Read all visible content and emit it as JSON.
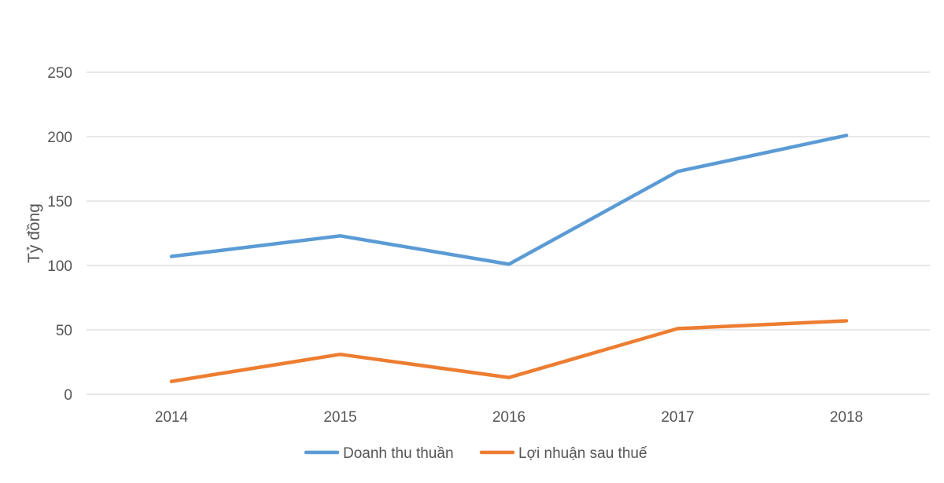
{
  "chart_data": {
    "type": "line",
    "title": "",
    "xlabel": "",
    "ylabel": "Tỷ đồng",
    "categories": [
      "2014",
      "2015",
      "2016",
      "2017",
      "2018"
    ],
    "ylim": [
      0,
      250
    ],
    "yticks": [
      0,
      50,
      100,
      150,
      200,
      250
    ],
    "grid": true,
    "legend_position": "bottom",
    "series": [
      {
        "name": "Doanh thu thuần",
        "color": "#5b9bd5",
        "values": [
          107,
          123,
          101,
          173,
          201
        ]
      },
      {
        "name": "Lợi nhuận sau thuế",
        "color": "#ed7d31",
        "values": [
          10,
          31,
          13,
          51,
          57
        ]
      }
    ]
  }
}
